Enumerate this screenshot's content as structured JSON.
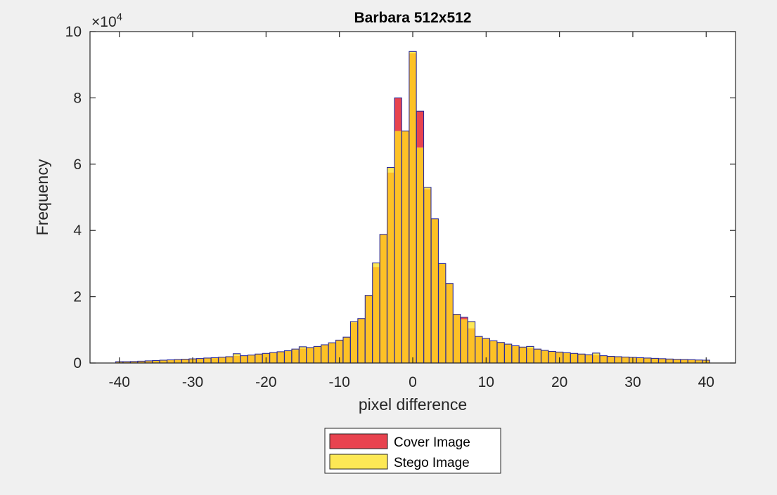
{
  "chart_data": {
    "type": "bar",
    "title": "Barbara 512x512",
    "xlabel": "pixel difference",
    "ylabel": "Frequency",
    "y_exponent_label": "×10",
    "y_exponent_power": "4",
    "xlim": [
      -44,
      44
    ],
    "ylim": [
      0,
      100000
    ],
    "x_ticks": [
      -40,
      -30,
      -20,
      -10,
      0,
      10,
      20,
      30,
      40
    ],
    "y_ticks": [
      0,
      20000,
      40000,
      60000,
      80000,
      100000
    ],
    "y_tick_labels": [
      "0",
      "2",
      "4",
      "6",
      "8",
      "10"
    ],
    "x": [
      -40,
      -39,
      -38,
      -37,
      -36,
      -35,
      -34,
      -33,
      -32,
      -31,
      -30,
      -29,
      -28,
      -27,
      -26,
      -25,
      -24,
      -23,
      -22,
      -21,
      -20,
      -19,
      -18,
      -17,
      -16,
      -15,
      -14,
      -13,
      -12,
      -11,
      -10,
      -9,
      -8,
      -7,
      -6,
      -5,
      -4,
      -3,
      -2,
      -1,
      0,
      1,
      2,
      3,
      4,
      5,
      6,
      7,
      8,
      9,
      10,
      11,
      12,
      13,
      14,
      15,
      16,
      17,
      18,
      19,
      20,
      21,
      22,
      23,
      24,
      25,
      26,
      27,
      28,
      29,
      30,
      31,
      32,
      33,
      34,
      35,
      36,
      37,
      38,
      39,
      40
    ],
    "series": [
      {
        "name": "Cover Image",
        "color": "#e8434f",
        "values": [
          400,
          400,
          450,
          550,
          650,
          750,
          850,
          950,
          1050,
          1150,
          1250,
          1350,
          1500,
          1600,
          1750,
          1900,
          2150,
          2200,
          2400,
          2700,
          2900,
          3150,
          3400,
          3700,
          4000,
          4400,
          4650,
          5000,
          5500,
          6100,
          6900,
          7800,
          12200,
          13400,
          20400,
          29000,
          38800,
          57500,
          80000,
          70000,
          93500,
          76000,
          52500,
          43500,
          30000,
          24000,
          14700,
          13800,
          10500,
          8000,
          7400,
          6700,
          6200,
          5700,
          5200,
          4800,
          4500,
          4200,
          3800,
          3500,
          3300,
          3100,
          2900,
          2700,
          2500,
          2400,
          2200,
          2000,
          1900,
          1800,
          1700,
          1600,
          1500,
          1400,
          1300,
          1200,
          1100,
          1050,
          1000,
          900,
          850
        ]
      },
      {
        "name": "Stego Image",
        "color": "#fde855",
        "values": [
          400,
          400,
          450,
          550,
          650,
          750,
          850,
          950,
          1050,
          1150,
          1250,
          1350,
          1500,
          1600,
          1750,
          1900,
          2800,
          2200,
          2400,
          2700,
          2900,
          3150,
          3400,
          3700,
          4200,
          4900,
          4650,
          5000,
          5500,
          6100,
          6900,
          7800,
          12500,
          13400,
          20400,
          30200,
          38800,
          59000,
          70000,
          70000,
          94000,
          65000,
          53000,
          43500,
          30000,
          24000,
          14700,
          13200,
          12500,
          8000,
          7400,
          6700,
          6200,
          5700,
          5200,
          4800,
          5000,
          4200,
          3800,
          3500,
          3300,
          3100,
          2900,
          2700,
          2500,
          3000,
          2200,
          2000,
          1900,
          1800,
          1700,
          1600,
          1500,
          1400,
          1300,
          1200,
          1100,
          1050,
          1000,
          900,
          850
        ]
      }
    ],
    "overlap_color": "#fdc126",
    "legend_position": "bottom-outside",
    "grid": false
  }
}
